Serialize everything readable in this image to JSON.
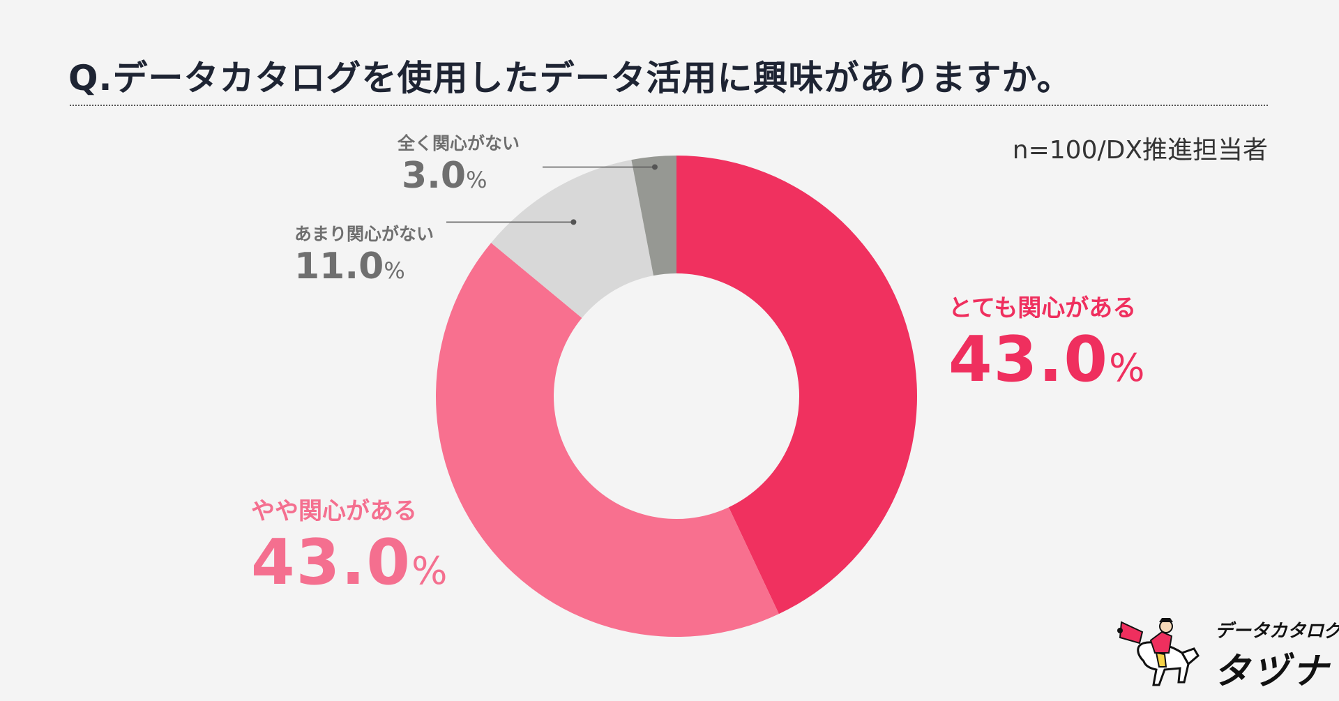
{
  "title": "Q.データカタログを使用したデータ活用に興味がありますか。",
  "sample_note": "n=100/DX推進担当者",
  "chart_data": {
    "type": "pie",
    "donut": true,
    "title": "Q.データカタログを使用したデータ活用に興味がありますか。",
    "categories": [
      "とても関心がある",
      "やや関心がある",
      "あまり関心がない",
      "全く関心がない"
    ],
    "values": [
      43.0,
      43.0,
      11.0,
      3.0
    ],
    "unit": "%",
    "value_labels": [
      "43.0",
      "43.0",
      "11.0",
      "3.0"
    ],
    "colors": [
      "#f0315f",
      "#f8708f",
      "#d8d8d8",
      "#969893"
    ],
    "legend": "none"
  },
  "brand": {
    "line1": "データカタログ",
    "line2": "タヅナ"
  }
}
